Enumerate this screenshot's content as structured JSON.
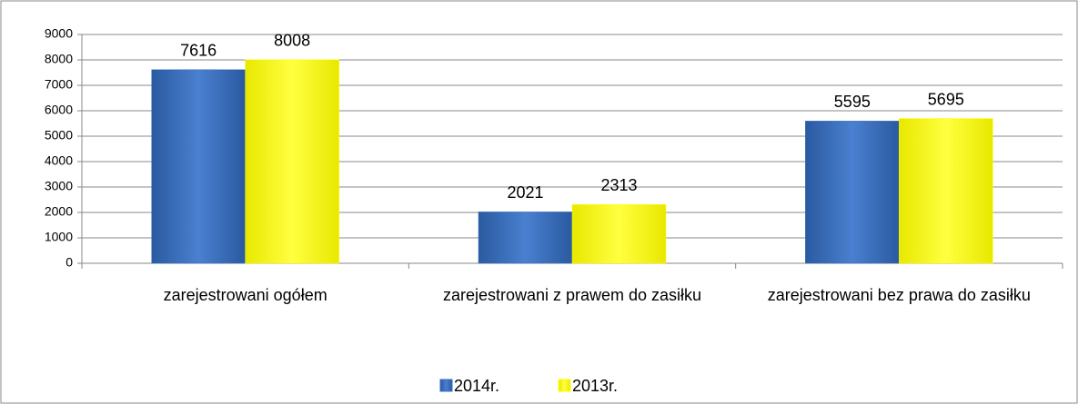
{
  "chart_data": {
    "type": "bar",
    "categories": [
      "zarejestrowani ogółem",
      "zarejestrowani z prawem do zasiłku",
      "zarejestrowani bez prawa do zasiłku"
    ],
    "series": [
      {
        "name": "2014r.",
        "color": "#3a6fc0",
        "values": [
          7616,
          2021,
          5595
        ]
      },
      {
        "name": "2013r.",
        "color": "#ffff00",
        "values": [
          8008,
          2313,
          5695
        ]
      }
    ],
    "ylim": [
      0,
      9000
    ],
    "yticks": [
      0,
      1000,
      2000,
      3000,
      4000,
      5000,
      6000,
      7000,
      8000,
      9000
    ],
    "grid": true,
    "legend": "bottom"
  }
}
